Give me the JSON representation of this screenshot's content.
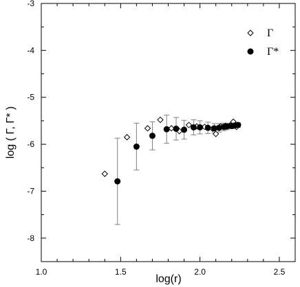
{
  "chart_data": {
    "type": "scatter",
    "xlabel": "log(r)",
    "ylabel": "log ( Γ, Γ* )",
    "xlim": [
      1.0,
      2.6
    ],
    "ylim": [
      -8.5,
      -3.0
    ],
    "x_ticks": [
      1.0,
      1.5,
      2.0,
      2.5
    ],
    "x_tick_labels": [
      "1.0",
      "1.5",
      "2.0",
      "2.5"
    ],
    "y_ticks": [
      -3,
      -4,
      -5,
      -6,
      -7,
      -8
    ],
    "y_tick_labels": [
      "-3",
      "-4",
      "-5",
      "-6",
      "-7",
      "-8"
    ],
    "grid": false,
    "legend_position": "top-right",
    "series": [
      {
        "name": "Γ",
        "marker": "open-diamond",
        "color": "#000000",
        "points": [
          {
            "x": 1.4,
            "y": -6.63
          },
          {
            "x": 1.54,
            "y": -5.85
          },
          {
            "x": 1.67,
            "y": -5.66
          },
          {
            "x": 1.75,
            "y": -5.48
          },
          {
            "x": 1.82,
            "y": -5.66
          },
          {
            "x": 1.87,
            "y": -5.72
          },
          {
            "x": 1.93,
            "y": -5.59
          },
          {
            "x": 1.98,
            "y": -5.62
          },
          {
            "x": 2.03,
            "y": -5.63
          },
          {
            "x": 2.08,
            "y": -5.67
          },
          {
            "x": 2.1,
            "y": -5.78
          },
          {
            "x": 2.13,
            "y": -5.62
          },
          {
            "x": 2.16,
            "y": -5.61
          },
          {
            "x": 2.19,
            "y": -5.6
          },
          {
            "x": 2.21,
            "y": -5.52
          },
          {
            "x": 2.23,
            "y": -5.63
          }
        ]
      },
      {
        "name": "Γ*",
        "marker": "filled-circle",
        "color": "#000000",
        "points": [
          {
            "x": 1.48,
            "y": -6.79,
            "err_low": -7.71,
            "err_high": -5.87
          },
          {
            "x": 1.6,
            "y": -6.05,
            "err_low": -6.55,
            "err_high": -5.55
          },
          {
            "x": 1.7,
            "y": -5.82,
            "err_low": -6.12,
            "err_high": -5.52
          },
          {
            "x": 1.79,
            "y": -5.68,
            "err_low": -5.98,
            "err_high": -5.38
          },
          {
            "x": 1.85,
            "y": -5.67,
            "err_low": -5.91,
            "err_high": -5.43
          },
          {
            "x": 1.9,
            "y": -5.69,
            "err_low": -5.89,
            "err_high": -5.49
          },
          {
            "x": 1.96,
            "y": -5.64,
            "err_low": -5.8,
            "err_high": -5.48
          },
          {
            "x": 2.0,
            "y": -5.64,
            "err_low": -5.78,
            "err_high": -5.5
          },
          {
            "x": 2.05,
            "y": -5.65,
            "err_low": -5.77,
            "err_high": -5.53
          },
          {
            "x": 2.09,
            "y": -5.66,
            "err_low": -5.76,
            "err_high": -5.56
          },
          {
            "x": 2.12,
            "y": -5.65,
            "err_low": -5.74,
            "err_high": -5.56
          },
          {
            "x": 2.15,
            "y": -5.63,
            "err_low": -5.71,
            "err_high": -5.55
          },
          {
            "x": 2.17,
            "y": -5.62,
            "err_low": -5.69,
            "err_high": -5.55
          },
          {
            "x": 2.2,
            "y": -5.61,
            "err_low": -5.67,
            "err_high": -5.55
          },
          {
            "x": 2.22,
            "y": -5.6,
            "err_low": -5.66,
            "err_high": -5.54
          },
          {
            "x": 2.24,
            "y": -5.59,
            "err_low": -5.64,
            "err_high": -5.54
          }
        ]
      }
    ]
  }
}
